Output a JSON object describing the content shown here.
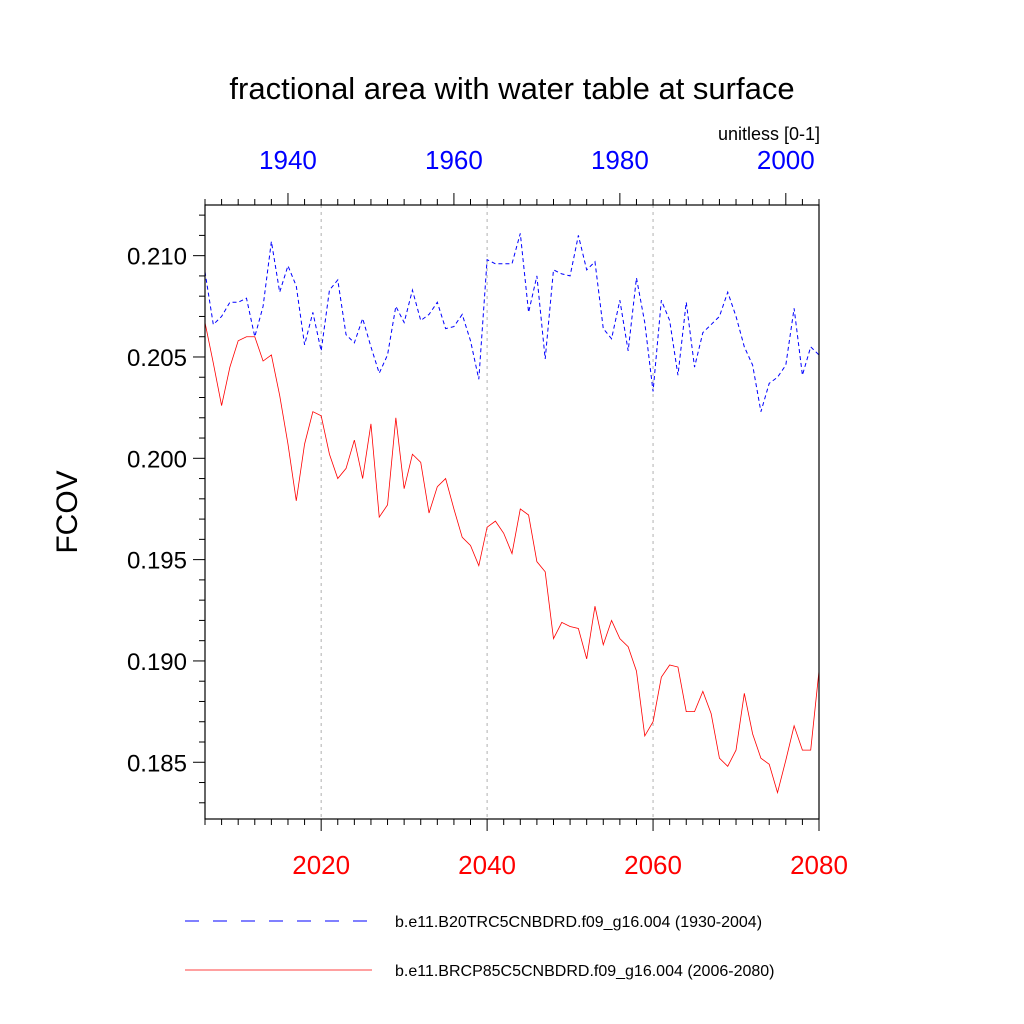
{
  "chart_data": {
    "type": "line",
    "title": "fractional area with water table at surface",
    "units_label": "unitless [0-1]",
    "ylabel": "FCOV",
    "ylim": [
      0.1822,
      0.2125
    ],
    "yticks": [
      0.185,
      0.19,
      0.195,
      0.2,
      0.205,
      0.21
    ],
    "ytick_labels": [
      "0.185",
      "0.190",
      "0.195",
      "0.200",
      "0.205",
      "0.210"
    ],
    "bottom_axis": {
      "range": [
        2006,
        2080
      ],
      "ticks": [
        2020,
        2040,
        2060,
        2080
      ],
      "tick_labels": [
        "2020",
        "2040",
        "2060",
        "2080"
      ],
      "color": "#ff0000"
    },
    "top_axis": {
      "range": [
        1930,
        2004
      ],
      "ticks": [
        1940,
        1960,
        1980,
        2000
      ],
      "tick_labels": [
        "1940",
        "1960",
        "1980",
        "2000"
      ],
      "color": "#0000ff"
    },
    "vertical_gridlines_bottom_years": [
      2020,
      2040,
      2060
    ],
    "series": [
      {
        "name": "b.e11.B20TRC5CNBDRD.f09_g16.004 (1930-2004)",
        "axis": "top",
        "color": "#0000ff",
        "dash": "dashed",
        "start_year": 1930,
        "values": [
          0.2092,
          0.2066,
          0.207,
          0.2077,
          0.2077,
          0.2079,
          0.206,
          0.2075,
          0.2107,
          0.2082,
          0.2095,
          0.2085,
          0.2056,
          0.2072,
          0.2053,
          0.2083,
          0.2088,
          0.2061,
          0.2057,
          0.2069,
          0.2055,
          0.2042,
          0.2051,
          0.2075,
          0.2067,
          0.2083,
          0.2068,
          0.2071,
          0.2077,
          0.2064,
          0.2065,
          0.2071,
          0.2058,
          0.2039,
          0.2098,
          0.2096,
          0.2096,
          0.2096,
          0.2111,
          0.2072,
          0.209,
          0.2049,
          0.2093,
          0.2091,
          0.209,
          0.211,
          0.2093,
          0.2097,
          0.2064,
          0.2059,
          0.2078,
          0.2053,
          0.2089,
          0.2067,
          0.2033,
          0.2078,
          0.2068,
          0.2041,
          0.2077,
          0.2045,
          0.2062,
          0.2066,
          0.207,
          0.2082,
          0.207,
          0.2055,
          0.2046,
          0.2023,
          0.2037,
          0.204,
          0.2046,
          0.2074,
          0.2041,
          0.2055,
          0.2051
        ]
      },
      {
        "name": "b.e11.BRCP85C5CNBDRD.f09_g16.004 (2006-2080)",
        "axis": "bottom",
        "color": "#ff0000",
        "dash": "solid",
        "start_year": 2006,
        "values": [
          0.2067,
          0.2047,
          0.2026,
          0.2045,
          0.2058,
          0.206,
          0.206,
          0.2048,
          0.2051,
          0.2031,
          0.2007,
          0.1979,
          0.2007,
          0.2023,
          0.2021,
          0.2002,
          0.199,
          0.1995,
          0.2009,
          0.199,
          0.2017,
          0.1971,
          0.1977,
          0.202,
          0.1985,
          0.2002,
          0.1998,
          0.1973,
          0.1986,
          0.199,
          0.1975,
          0.1961,
          0.1957,
          0.1947,
          0.1966,
          0.1969,
          0.1963,
          0.1953,
          0.1975,
          0.1972,
          0.1949,
          0.1944,
          0.1911,
          0.1919,
          0.1917,
          0.1916,
          0.1901,
          0.1927,
          0.1908,
          0.192,
          0.1911,
          0.1907,
          0.1895,
          0.1863,
          0.187,
          0.1892,
          0.1898,
          0.1897,
          0.1875,
          0.1875,
          0.1885,
          0.1874,
          0.1852,
          0.1848,
          0.1856,
          0.1884,
          0.1864,
          0.1852,
          0.1849,
          0.1835,
          0.1851,
          0.1868,
          0.1856,
          0.1856,
          0.1895
        ]
      }
    ],
    "legend": {
      "placement": "bottom"
    }
  }
}
